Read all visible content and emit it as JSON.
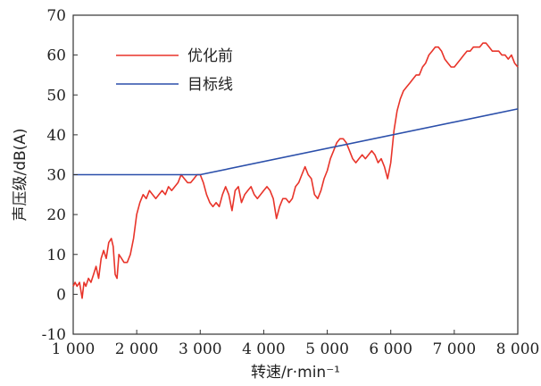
{
  "chart_data": {
    "type": "line",
    "xlabel": "转速/r·min⁻¹",
    "ylabel": "声压级/dB(A)",
    "xlim": [
      1000,
      8000
    ],
    "ylim": [
      -10,
      70
    ],
    "x_ticks": [
      1000,
      2000,
      3000,
      4000,
      5000,
      6000,
      7000,
      8000
    ],
    "x_tick_labels": [
      "1 000",
      "2 000",
      "3 000",
      "4 000",
      "5 000",
      "6 000",
      "7 000",
      "8 000"
    ],
    "y_ticks": [
      -10,
      0,
      10,
      20,
      30,
      40,
      50,
      60,
      70
    ],
    "y_tick_labels": [
      "-10",
      "0",
      "10",
      "20",
      "30",
      "40",
      "50",
      "60",
      "70"
    ],
    "grid": false,
    "legend_position": "top-left",
    "series": [
      {
        "name": "优化前",
        "color": "#e8342a",
        "points": [
          [
            1000,
            2
          ],
          [
            1030,
            3
          ],
          [
            1060,
            2
          ],
          [
            1100,
            3
          ],
          [
            1140,
            -1
          ],
          [
            1170,
            3
          ],
          [
            1200,
            2
          ],
          [
            1240,
            4
          ],
          [
            1280,
            3
          ],
          [
            1320,
            5
          ],
          [
            1360,
            7
          ],
          [
            1400,
            4
          ],
          [
            1440,
            9
          ],
          [
            1480,
            11
          ],
          [
            1520,
            9
          ],
          [
            1560,
            13
          ],
          [
            1600,
            14
          ],
          [
            1630,
            12
          ],
          [
            1660,
            5
          ],
          [
            1690,
            4
          ],
          [
            1720,
            10
          ],
          [
            1760,
            9
          ],
          [
            1800,
            8
          ],
          [
            1850,
            8
          ],
          [
            1900,
            10
          ],
          [
            1950,
            14
          ],
          [
            2000,
            20
          ],
          [
            2050,
            23
          ],
          [
            2100,
            25
          ],
          [
            2150,
            24
          ],
          [
            2200,
            26
          ],
          [
            2250,
            25
          ],
          [
            2300,
            24
          ],
          [
            2350,
            25
          ],
          [
            2400,
            26
          ],
          [
            2450,
            25
          ],
          [
            2500,
            27
          ],
          [
            2550,
            26
          ],
          [
            2600,
            27
          ],
          [
            2650,
            28
          ],
          [
            2700,
            30
          ],
          [
            2750,
            29
          ],
          [
            2800,
            28
          ],
          [
            2850,
            28
          ],
          [
            2900,
            29
          ],
          [
            2950,
            30
          ],
          [
            3000,
            30
          ],
          [
            3050,
            28
          ],
          [
            3100,
            25
          ],
          [
            3150,
            23
          ],
          [
            3200,
            22
          ],
          [
            3250,
            23
          ],
          [
            3300,
            22
          ],
          [
            3350,
            25
          ],
          [
            3400,
            27
          ],
          [
            3450,
            25
          ],
          [
            3500,
            21
          ],
          [
            3550,
            26
          ],
          [
            3600,
            27
          ],
          [
            3650,
            23
          ],
          [
            3700,
            25
          ],
          [
            3750,
            26
          ],
          [
            3800,
            27
          ],
          [
            3850,
            25
          ],
          [
            3900,
            24
          ],
          [
            3950,
            25
          ],
          [
            4000,
            26
          ],
          [
            4050,
            27
          ],
          [
            4100,
            26
          ],
          [
            4150,
            24
          ],
          [
            4200,
            19
          ],
          [
            4250,
            22
          ],
          [
            4300,
            24
          ],
          [
            4350,
            24
          ],
          [
            4400,
            23
          ],
          [
            4450,
            24
          ],
          [
            4500,
            27
          ],
          [
            4550,
            28
          ],
          [
            4600,
            30
          ],
          [
            4650,
            32
          ],
          [
            4700,
            30
          ],
          [
            4750,
            29
          ],
          [
            4800,
            25
          ],
          [
            4850,
            24
          ],
          [
            4900,
            26
          ],
          [
            4950,
            29
          ],
          [
            5000,
            31
          ],
          [
            5050,
            34
          ],
          [
            5100,
            36
          ],
          [
            5150,
            38
          ],
          [
            5200,
            39
          ],
          [
            5250,
            39
          ],
          [
            5300,
            38
          ],
          [
            5350,
            36
          ],
          [
            5400,
            34
          ],
          [
            5450,
            33
          ],
          [
            5500,
            34
          ],
          [
            5550,
            35
          ],
          [
            5600,
            34
          ],
          [
            5650,
            35
          ],
          [
            5700,
            36
          ],
          [
            5750,
            35
          ],
          [
            5800,
            33
          ],
          [
            5850,
            34
          ],
          [
            5900,
            32
          ],
          [
            5950,
            29
          ],
          [
            6000,
            33
          ],
          [
            6050,
            41
          ],
          [
            6100,
            46
          ],
          [
            6150,
            49
          ],
          [
            6200,
            51
          ],
          [
            6250,
            52
          ],
          [
            6300,
            53
          ],
          [
            6350,
            54
          ],
          [
            6400,
            55
          ],
          [
            6450,
            55
          ],
          [
            6500,
            57
          ],
          [
            6550,
            58
          ],
          [
            6600,
            60
          ],
          [
            6650,
            61
          ],
          [
            6700,
            62
          ],
          [
            6750,
            62
          ],
          [
            6800,
            61
          ],
          [
            6850,
            59
          ],
          [
            6900,
            58
          ],
          [
            6950,
            57
          ],
          [
            7000,
            57
          ],
          [
            7050,
            58
          ],
          [
            7100,
            59
          ],
          [
            7150,
            60
          ],
          [
            7200,
            61
          ],
          [
            7250,
            61
          ],
          [
            7300,
            62
          ],
          [
            7350,
            62
          ],
          [
            7400,
            62
          ],
          [
            7450,
            63
          ],
          [
            7500,
            63
          ],
          [
            7550,
            62
          ],
          [
            7600,
            61
          ],
          [
            7650,
            61
          ],
          [
            7700,
            61
          ],
          [
            7750,
            60
          ],
          [
            7800,
            60
          ],
          [
            7850,
            59
          ],
          [
            7900,
            60
          ],
          [
            7950,
            58
          ],
          [
            8000,
            57
          ]
        ]
      },
      {
        "name": "目标线",
        "color": "#2b4faa",
        "points": [
          [
            1000,
            30
          ],
          [
            3000,
            30
          ],
          [
            8000,
            46.5
          ]
        ]
      }
    ]
  }
}
